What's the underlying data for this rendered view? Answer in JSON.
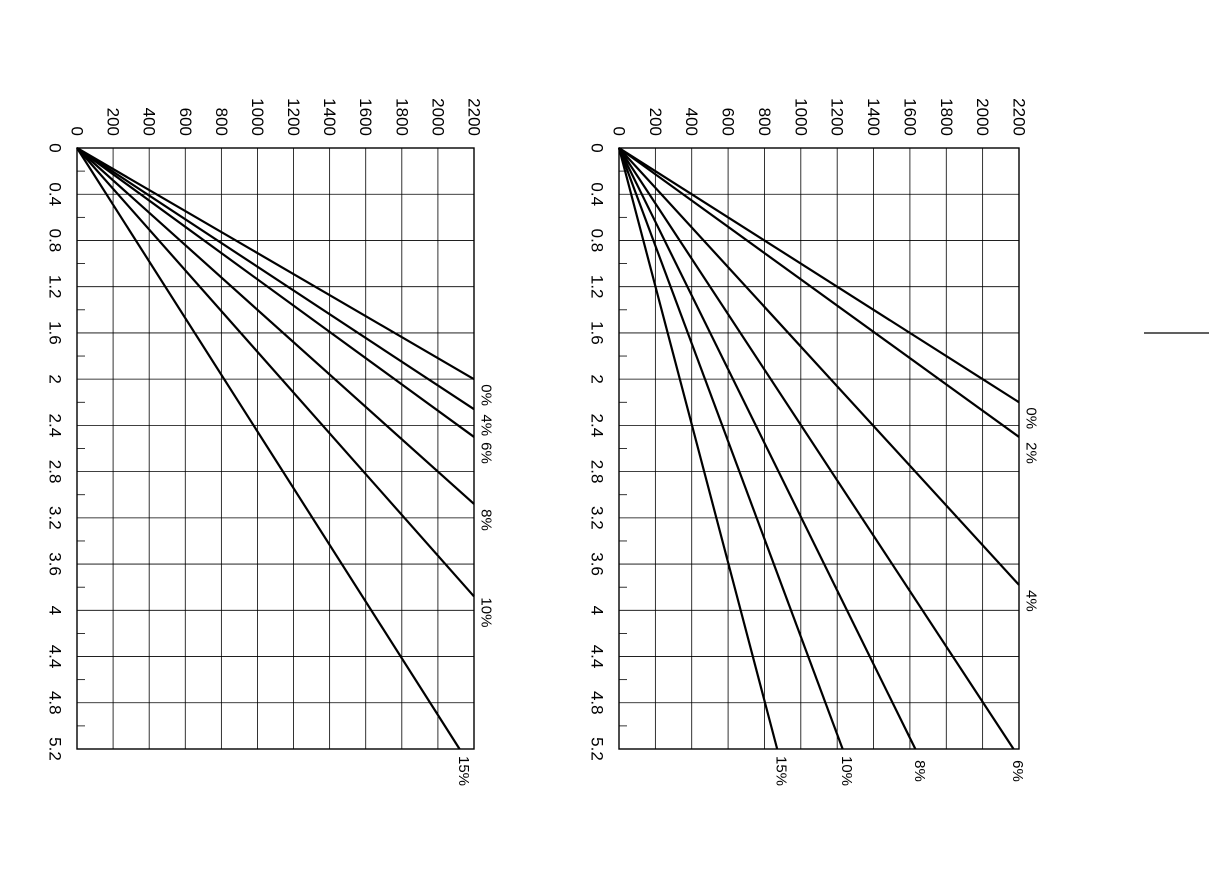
{
  "chart_data": [
    {
      "type": "line",
      "title": "",
      "xlabel": "",
      "ylabel": "",
      "xlim": [
        0,
        5.2
      ],
      "ylim": [
        0,
        2200
      ],
      "x_ticks": [
        "0",
        "0.4",
        "0.8",
        "1.2",
        "1.6",
        "2",
        "2.4",
        "2.8",
        "3.2",
        "3.6",
        "4",
        "4.4",
        "4.8",
        "5.2"
      ],
      "y_ticks": [
        "0",
        "200",
        "400",
        "600",
        "800",
        "1000",
        "1200",
        "1400",
        "1600",
        "1800",
        "2000",
        "2200"
      ],
      "grid": true,
      "orientation": "rotated 90 degrees clockwise",
      "series": [
        {
          "name": "0%",
          "label": "0%",
          "x": [
            0,
            2.0
          ],
          "y": [
            0,
            2200
          ]
        },
        {
          "name": "4%",
          "label": "4%",
          "x": [
            0,
            2.26
          ],
          "y": [
            0,
            2200
          ]
        },
        {
          "name": "6%",
          "label": "6%",
          "x": [
            0,
            2.5
          ],
          "y": [
            0,
            2200
          ]
        },
        {
          "name": "8%",
          "label": "8%",
          "x": [
            0,
            3.08
          ],
          "y": [
            0,
            2200
          ]
        },
        {
          "name": "10%",
          "label": "10%",
          "x": [
            0,
            3.88
          ],
          "y": [
            0,
            2200
          ]
        },
        {
          "name": "15%",
          "label": "15%",
          "x": [
            0,
            5.2
          ],
          "y": [
            0,
            2120
          ]
        }
      ]
    },
    {
      "type": "line",
      "title": "",
      "xlabel": "",
      "ylabel": "",
      "xlim": [
        0,
        5.2
      ],
      "ylim": [
        0,
        2200
      ],
      "x_ticks": [
        "0",
        "0.4",
        "0.8",
        "1.2",
        "1.6",
        "2",
        "2.4",
        "2.8",
        "3.2",
        "3.6",
        "4",
        "4.4",
        "4.8",
        "5.2"
      ],
      "y_ticks": [
        "0",
        "200",
        "400",
        "600",
        "800",
        "1000",
        "1200",
        "1400",
        "1600",
        "1800",
        "2000",
        "2200"
      ],
      "grid": true,
      "orientation": "rotated 90 degrees clockwise",
      "series": [
        {
          "name": "0%",
          "label": "0%",
          "x": [
            0,
            2.2
          ],
          "y": [
            0,
            2200
          ]
        },
        {
          "name": "2%",
          "label": "2%",
          "x": [
            0,
            2.5
          ],
          "y": [
            0,
            2200
          ]
        },
        {
          "name": "4%",
          "label": "4%",
          "x": [
            0,
            3.78
          ],
          "y": [
            0,
            2200
          ]
        },
        {
          "name": "6%",
          "label": "6%",
          "x": [
            0,
            5.2
          ],
          "y": [
            0,
            2170
          ]
        },
        {
          "name": "8%",
          "label": "8%",
          "x": [
            0,
            5.2
          ],
          "y": [
            0,
            1630
          ]
        },
        {
          "name": "10%",
          "label": "10%",
          "x": [
            0,
            5.2
          ],
          "y": [
            0,
            1230
          ]
        },
        {
          "name": "15%",
          "label": "15%",
          "x": [
            0,
            5.2
          ],
          "y": [
            0,
            870
          ]
        }
      ]
    }
  ]
}
